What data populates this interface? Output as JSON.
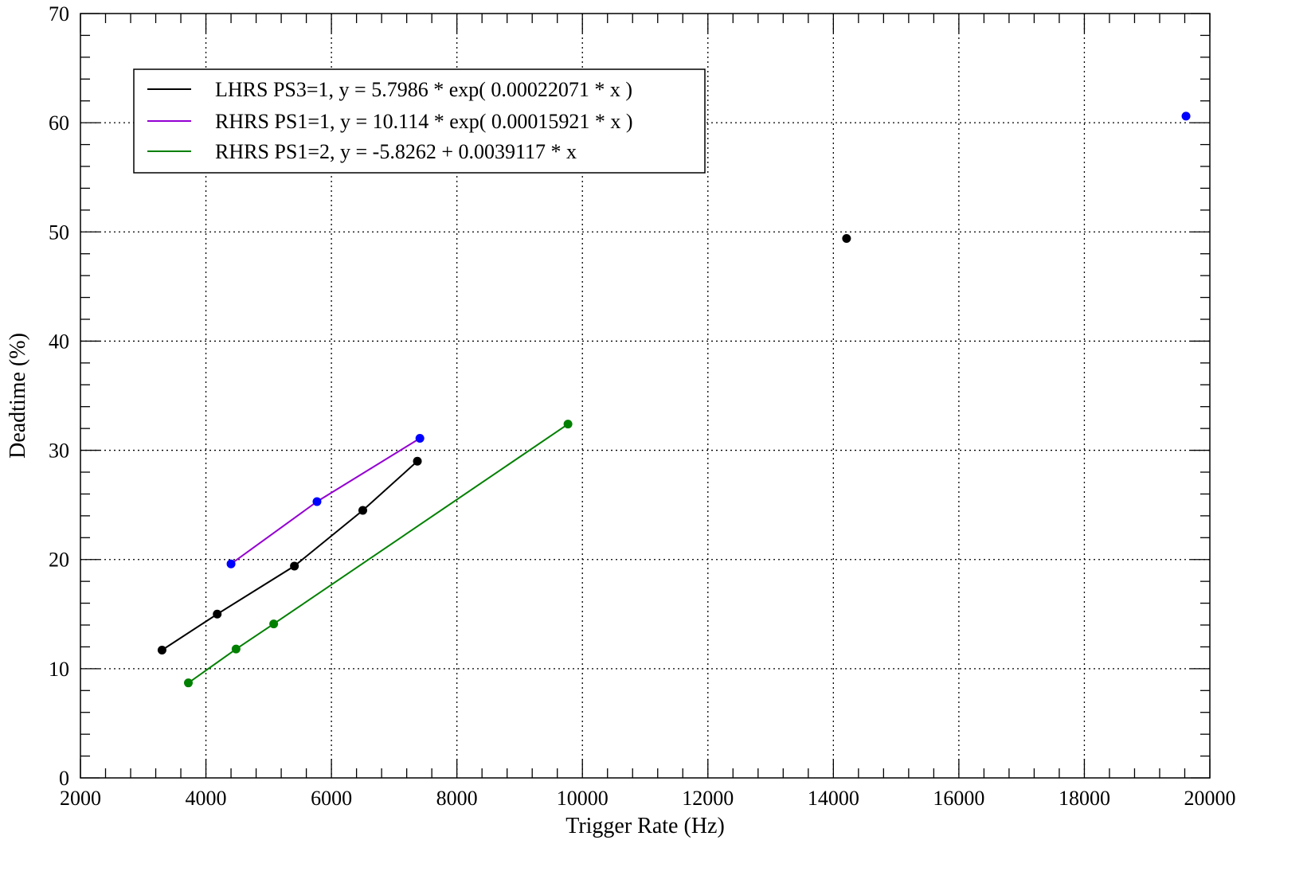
{
  "chart_data": {
    "type": "scatter",
    "title": "",
    "xlabel": "Trigger Rate (Hz)",
    "ylabel": "Deadtime (%)",
    "xlim": [
      2000,
      20000
    ],
    "ylim": [
      0,
      70
    ],
    "x_ticks": [
      2000,
      4000,
      6000,
      8000,
      10000,
      12000,
      14000,
      16000,
      18000,
      20000
    ],
    "y_ticks": [
      0,
      10,
      20,
      30,
      40,
      50,
      60,
      70
    ],
    "x_tick_labels": [
      "2000",
      "4000",
      "6000",
      "8000",
      "10000",
      "12000",
      "14000",
      "16000",
      "18000",
      "20000"
    ],
    "y_tick_labels": [
      "0",
      "10",
      "20",
      "30",
      "40",
      "50",
      "60",
      "70"
    ],
    "grid": true,
    "legend_position": "top-left",
    "series": [
      {
        "name": "LHRS PS3=1, y = 5.7986 * exp( 0.00022071 * x )",
        "color": "#000000",
        "marker_color": "#000000",
        "points": [
          [
            3300,
            11.7
          ],
          [
            4180,
            15.0
          ],
          [
            5410,
            19.4
          ],
          [
            6500,
            24.5
          ],
          [
            7370,
            29.0
          ],
          [
            14210,
            49.4
          ]
        ],
        "fit_x": [
          3300,
          4180,
          5410,
          6500,
          7370
        ]
      },
      {
        "name": "RHRS PS1=1, y = 10.114 * exp( 0.00015921 * x )",
        "color": "#9400d3",
        "marker_color": "#0000ff",
        "points": [
          [
            4400,
            19.6
          ],
          [
            5770,
            25.3
          ],
          [
            7410,
            31.1
          ],
          [
            19620,
            60.6
          ]
        ],
        "fit_x": [
          4400,
          5770,
          7410
        ]
      },
      {
        "name": "RHRS PS1=2, y = -5.8262 + 0.0039117 * x",
        "color": "#008000",
        "marker_color": "#008000",
        "points": [
          [
            3720,
            8.7
          ],
          [
            4480,
            11.8
          ],
          [
            5080,
            14.1
          ],
          [
            9770,
            32.4
          ]
        ],
        "fit_x": [
          3720,
          4480,
          5080,
          9770
        ]
      }
    ]
  }
}
